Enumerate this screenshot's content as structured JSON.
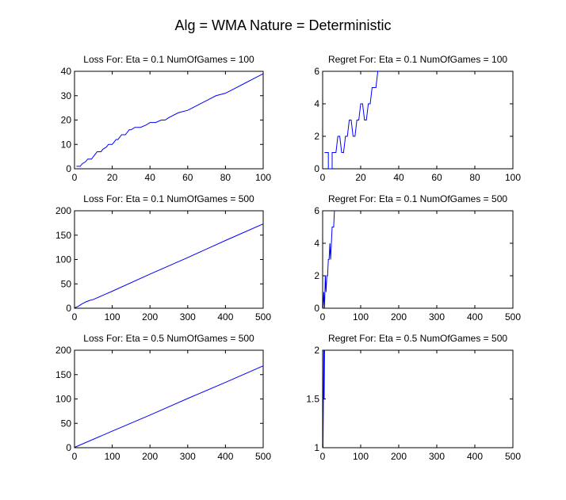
{
  "figure_title": "Alg = WMA Nature = Deterministic",
  "colors": {
    "series": "#0000ff",
    "axes": "#000000",
    "background": "#ffffff"
  },
  "chart_data": [
    {
      "type": "line",
      "title": "Loss For: Eta = 0.1 NumOfGames = 100",
      "xlim": [
        0,
        100
      ],
      "ylim": [
        0,
        40
      ],
      "xticks": [
        0,
        20,
        40,
        60,
        80,
        100
      ],
      "yticks": [
        0,
        10,
        20,
        30,
        40
      ],
      "series": [
        {
          "x": [
            1,
            3,
            4,
            6,
            7,
            9,
            10,
            11,
            12,
            14,
            15,
            17,
            18,
            20,
            21,
            22,
            23,
            24,
            25,
            27,
            28,
            29,
            30,
            32,
            35,
            38,
            40,
            43,
            46,
            48,
            50,
            55,
            60,
            65,
            70,
            75,
            80,
            85,
            90,
            95,
            100
          ],
          "y": [
            1,
            1,
            2,
            3,
            4,
            4,
            5,
            6,
            7,
            7,
            8,
            9,
            10,
            10,
            11,
            12,
            12,
            13,
            14,
            14,
            15,
            16,
            16,
            17,
            17,
            18,
            19,
            19,
            20,
            20,
            21,
            23,
            24,
            26,
            28,
            30,
            31,
            33,
            35,
            37,
            39
          ]
        }
      ]
    },
    {
      "type": "line",
      "title": "Regret For: Eta = 0.1 NumOfGames = 100",
      "xlim": [
        0,
        100
      ],
      "ylim": [
        0,
        6
      ],
      "xticks": [
        0,
        20,
        40,
        60,
        80,
        100
      ],
      "yticks": [
        0,
        2,
        4,
        6
      ],
      "series": [
        {
          "x": [
            1,
            3,
            3,
            5,
            5,
            7,
            8,
            9,
            10,
            11,
            12,
            13,
            14,
            15,
            16,
            17,
            18,
            19,
            20,
            21,
            22,
            23,
            24,
            25,
            26,
            27,
            28,
            29,
            30
          ],
          "y": [
            1,
            1,
            0,
            0,
            1,
            1,
            2,
            2,
            1,
            1,
            2,
            2,
            3,
            3,
            2,
            2,
            3,
            3,
            4,
            4,
            3,
            3,
            4,
            4,
            5,
            5,
            5,
            6,
            6
          ]
        }
      ]
    },
    {
      "type": "line",
      "title": "Loss For: Eta = 0.1 NumOfGames = 500",
      "xlim": [
        0,
        500
      ],
      "ylim": [
        0,
        200
      ],
      "xticks": [
        0,
        100,
        200,
        300,
        400,
        500
      ],
      "yticks": [
        0,
        50,
        100,
        150,
        200
      ],
      "series": [
        {
          "x": [
            1,
            10,
            20,
            30,
            40,
            50,
            100,
            200,
            300,
            400,
            500
          ],
          "y": [
            1,
            4,
            9,
            13,
            16,
            18,
            35,
            70,
            104,
            139,
            173
          ]
        }
      ]
    },
    {
      "type": "line",
      "title": "Regret For: Eta = 0.1 NumOfGames = 500",
      "xlim": [
        0,
        500
      ],
      "ylim": [
        0,
        6
      ],
      "xticks": [
        0,
        100,
        200,
        300,
        400,
        500
      ],
      "yticks": [
        0,
        2,
        4,
        6
      ],
      "series": [
        {
          "x": [
            1,
            3,
            5,
            7,
            9,
            11,
            13,
            15,
            17,
            19,
            21,
            23,
            25,
            27,
            29,
            31
          ],
          "y": [
            0,
            1,
            0,
            2,
            1,
            2,
            2,
            3,
            3,
            4,
            3,
            4,
            5,
            5,
            5,
            6
          ]
        }
      ]
    },
    {
      "type": "line",
      "title": "Loss For: Eta = 0.5 NumOfGames = 500",
      "xlim": [
        0,
        500
      ],
      "ylim": [
        0,
        200
      ],
      "xticks": [
        0,
        100,
        200,
        300,
        400,
        500
      ],
      "yticks": [
        0,
        50,
        100,
        150,
        200
      ],
      "series": [
        {
          "x": [
            1,
            100,
            200,
            300,
            400,
            500
          ],
          "y": [
            1,
            34,
            67,
            101,
            134,
            168
          ]
        }
      ]
    },
    {
      "type": "line",
      "title": "Regret For: Eta = 0.5 NumOfGames = 500",
      "xlim": [
        0,
        500
      ],
      "ylim": [
        1,
        2
      ],
      "xticks": [
        0,
        100,
        200,
        300,
        400,
        500
      ],
      "yticks": [
        1,
        1.5,
        2
      ],
      "series": [
        {
          "x": [
            1,
            2,
            3,
            4,
            5,
            6,
            7
          ],
          "y": [
            1,
            1.5,
            2,
            1.5,
            2,
            2,
            2
          ]
        }
      ]
    }
  ]
}
